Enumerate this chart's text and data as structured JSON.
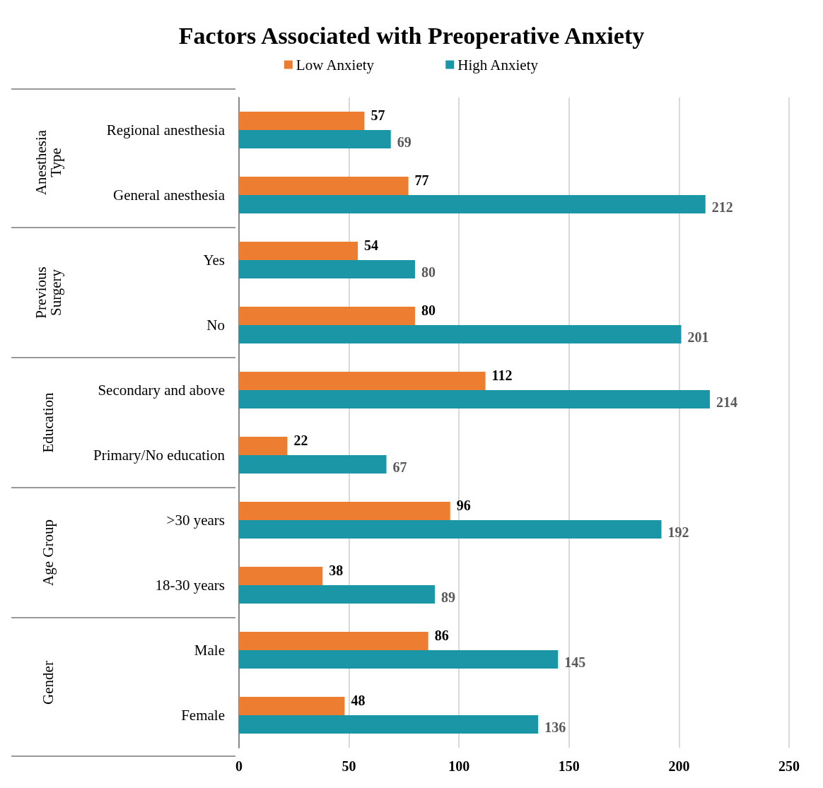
{
  "chart_data": {
    "type": "bar",
    "orientation": "horizontal",
    "title": "Factors Associated with Preoperative Anxiety",
    "categories": [
      "Regional anesthesia",
      "General anesthesia",
      "Yes",
      "No",
      "Secondary and above",
      "Primary/No education",
      ">30 years",
      "18-30 years",
      "Male",
      "Female"
    ],
    "series": [
      {
        "name": "Low Anxiety",
        "color": "#ed7d31",
        "values": [
          57,
          77,
          54,
          80,
          112,
          22,
          96,
          38,
          86,
          48
        ]
      },
      {
        "name": "High Anxiety",
        "color": "#1a96a6",
        "values": [
          69,
          212,
          80,
          201,
          214,
          67,
          192,
          89,
          145,
          136
        ]
      }
    ],
    "annotations": [
      "Anesthesia Type",
      "Previous Surgery",
      "Education",
      "Age Group",
      "Gender"
    ],
    "xlim": [
      0,
      250
    ],
    "xticks": [
      0,
      50,
      100,
      150,
      200,
      250
    ],
    "grid": "x",
    "legend": "top",
    "data_labels": true
  }
}
